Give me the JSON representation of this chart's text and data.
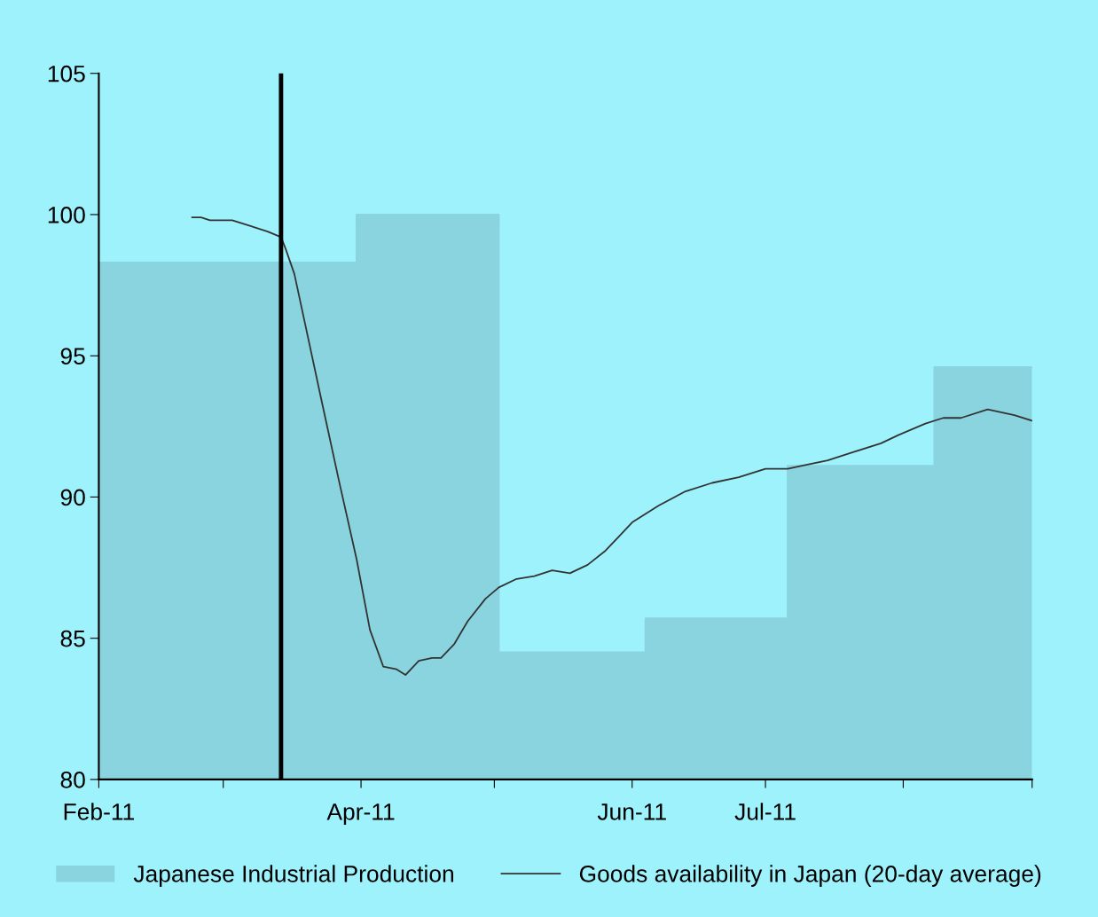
{
  "chart_data": {
    "type": "line",
    "series": [
      {
        "name": "Japanese Industrial Production",
        "type": "area",
        "color": "#8ad4e0",
        "x": [
          "2011-02-01",
          "2011-03-31",
          "2011-03-31",
          "2011-05-02",
          "2011-05-02",
          "2011-06-04",
          "2011-06-04",
          "2011-07-06",
          "2011-07-06",
          "2011-08-08",
          "2011-08-08",
          "2011-08-30"
        ],
        "values": [
          98.3,
          98.3,
          100,
          100,
          84.5,
          84.5,
          85.7,
          85.7,
          91.1,
          91.1,
          94.6,
          94.6
        ]
      },
      {
        "name": "Goods availability in Japan (20-day average)",
        "color": "#333333",
        "x": [
          "2011-02-22",
          "2011-02-24",
          "2011-02-26",
          "2011-03-03",
          "2011-03-07",
          "2011-03-11",
          "2011-03-14",
          "2011-03-15",
          "2011-03-17",
          "2011-03-20",
          "2011-03-23",
          "2011-03-27",
          "2011-03-31",
          "2011-04-03",
          "2011-04-06",
          "2011-04-09",
          "2011-04-11",
          "2011-04-14",
          "2011-04-17",
          "2011-04-19",
          "2011-04-22",
          "2011-04-25",
          "2011-04-29",
          "2011-05-02",
          "2011-05-06",
          "2011-05-10",
          "2011-05-14",
          "2011-05-18",
          "2011-05-22",
          "2011-05-26",
          "2011-05-29",
          "2011-06-01",
          "2011-06-07",
          "2011-06-13",
          "2011-06-19",
          "2011-06-25",
          "2011-07-01",
          "2011-07-06",
          "2011-07-09",
          "2011-07-15",
          "2011-07-21",
          "2011-07-27",
          "2011-07-31",
          "2011-08-06",
          "2011-08-10",
          "2011-08-14",
          "2011-08-20",
          "2011-08-26",
          "2011-08-30"
        ],
        "values": [
          99.9,
          99.9,
          99.8,
          99.8,
          99.6,
          99.4,
          99.2,
          98.8,
          97.9,
          95.7,
          93.5,
          90.6,
          87.8,
          85.3,
          84.0,
          83.9,
          83.7,
          84.2,
          84.3,
          84.3,
          84.8,
          85.6,
          86.4,
          86.8,
          87.1,
          87.2,
          87.4,
          87.3,
          87.6,
          88.1,
          88.6,
          89.1,
          89.7,
          90.2,
          90.5,
          90.7,
          91.0,
          91.0,
          91.1,
          91.3,
          91.6,
          91.9,
          92.2,
          92.6,
          92.8,
          92.8,
          93.1,
          92.9,
          92.7
        ]
      }
    ],
    "xlim": [
      "2011-02-01",
      "2011-08-30"
    ],
    "xticks": [
      {
        "value": "2011-02-01",
        "label": "Feb-11"
      },
      {
        "value": "2011-03-01",
        "label": null
      },
      {
        "value": "2011-04-01",
        "label": "Apr-11"
      },
      {
        "value": "2011-05-01",
        "label": null
      },
      {
        "value": "2011-06-01",
        "label": "Jun-11"
      },
      {
        "value": "2011-07-01",
        "label": "Jul-11"
      },
      {
        "value": "2011-08-01",
        "label": null
      },
      {
        "value": "2011-08-30",
        "label": null
      }
    ],
    "ylim": [
      80,
      105
    ],
    "yticks": [
      80,
      85,
      90,
      95,
      100,
      105
    ],
    "ref_lines": [
      {
        "axis": "x",
        "value": "2011-03-14",
        "color": "#000000"
      }
    ],
    "grid": false,
    "legend": "bottom"
  }
}
